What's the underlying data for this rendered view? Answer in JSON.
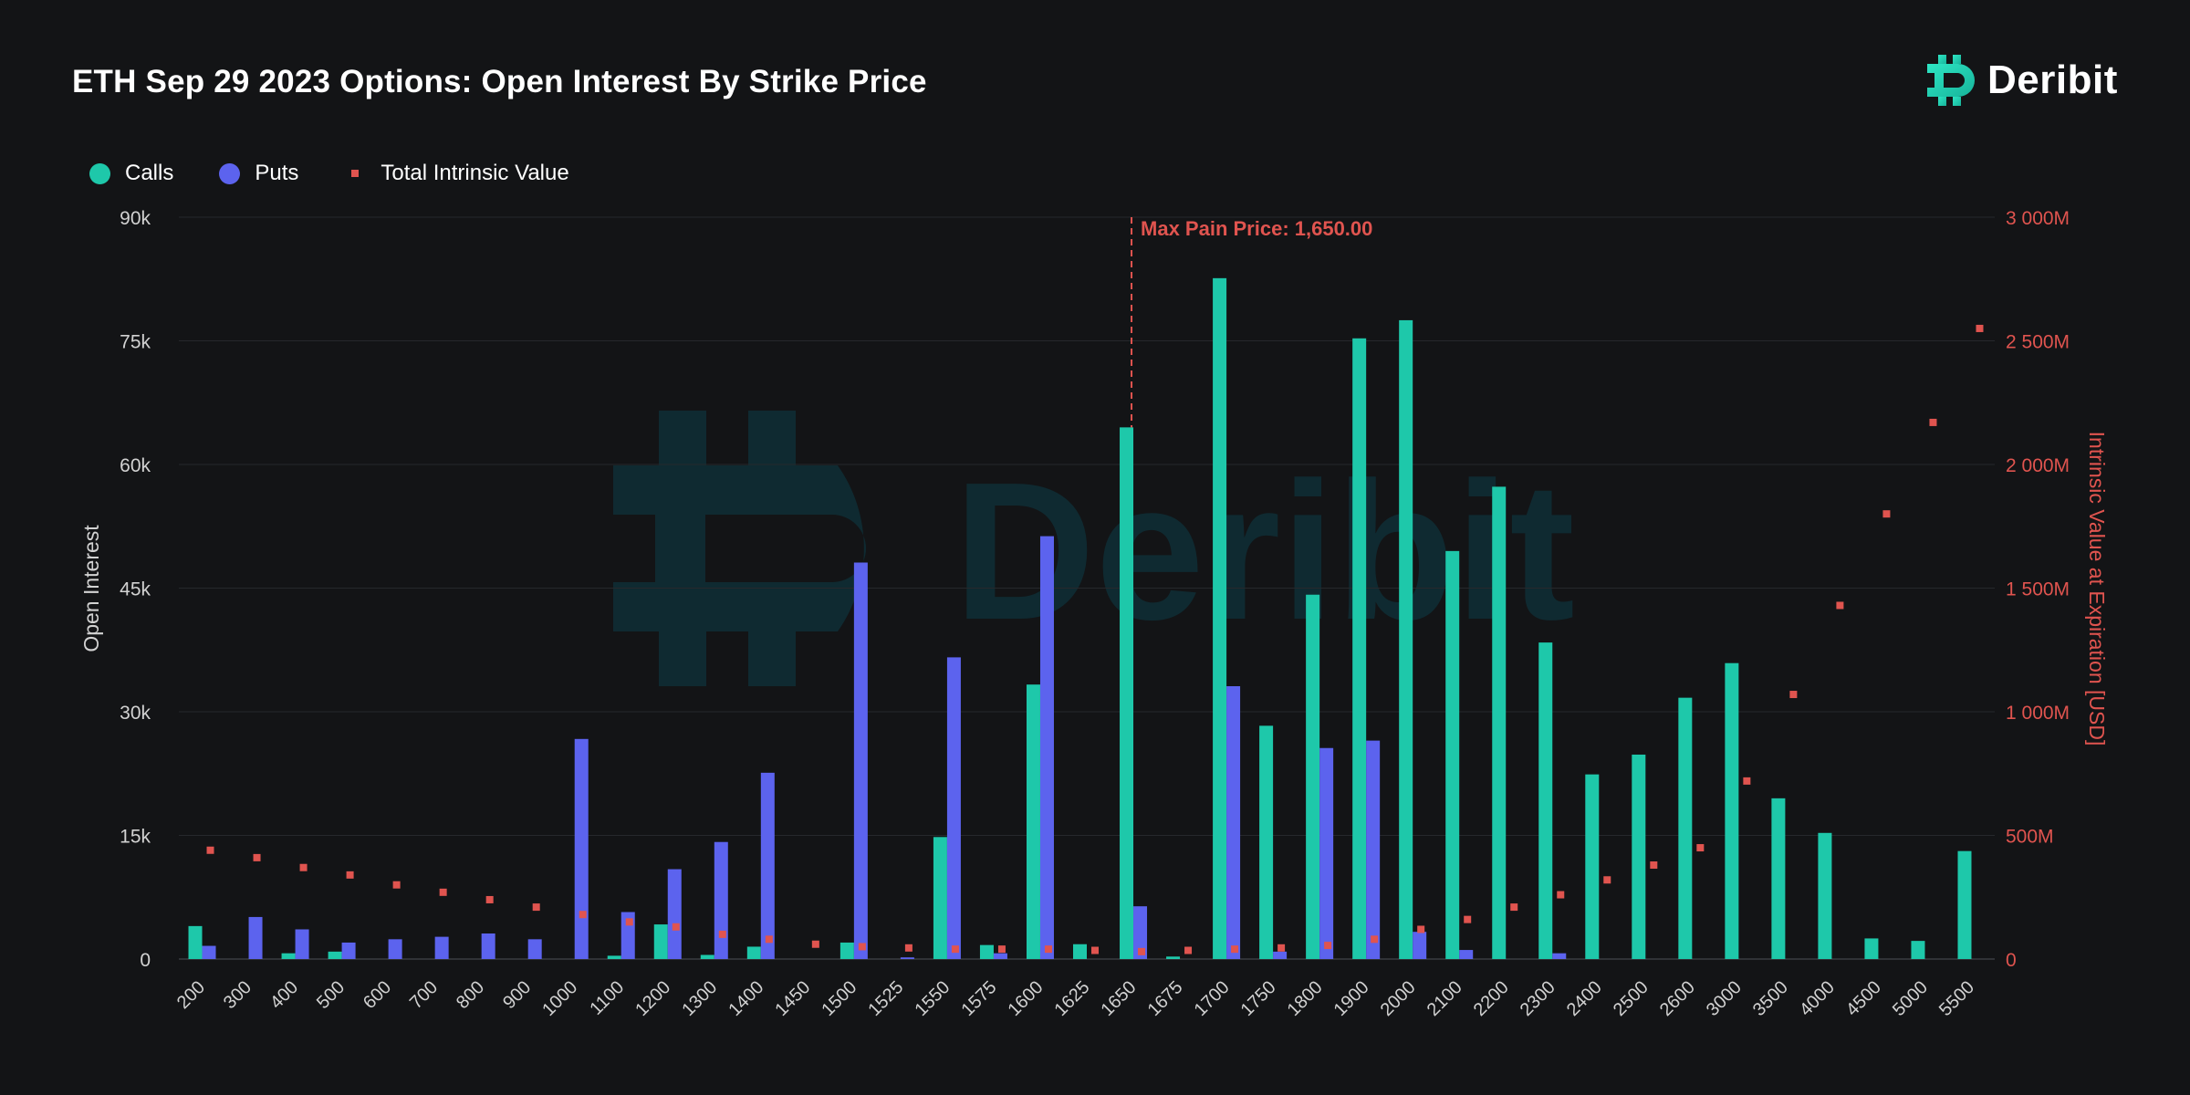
{
  "header": {
    "title": "ETH Sep 29 2023 Options: Open Interest By Strike Price",
    "brand": "Deribit"
  },
  "colors": {
    "background": "#131416",
    "calls": "#1ec8aa",
    "puts": "#5c63ee",
    "intrinsic": "#e0544f",
    "grid": "#26282c",
    "axis_text": "#d2d2d2",
    "right_axis_text": "#e0544f",
    "watermark": "#0f2a31"
  },
  "legend": {
    "calls": "Calls",
    "puts": "Puts",
    "intrinsic": "Total Intrinsic Value"
  },
  "chart_data": {
    "type": "bar",
    "title": "ETH Sep 29 2023 Options: Open Interest By Strike Price",
    "xlabel": "",
    "ylabel": "Open Interest",
    "y2label": "Intrinsic Value at Expiration [USD]",
    "ylim": [
      0,
      90000
    ],
    "y2lim": [
      0,
      3000000000
    ],
    "yticks": [
      "0",
      "15k",
      "30k",
      "45k",
      "60k",
      "75k",
      "90k"
    ],
    "y2ticks": [
      "0",
      "500M",
      "1 000M",
      "1 500M",
      "2 000M",
      "2 500M",
      "3 000M"
    ],
    "grid": true,
    "legend_position": "top-left",
    "categories": [
      "200",
      "300",
      "400",
      "500",
      "600",
      "700",
      "800",
      "900",
      "1000",
      "1100",
      "1200",
      "1300",
      "1400",
      "1450",
      "1500",
      "1525",
      "1550",
      "1575",
      "1600",
      "1625",
      "1650",
      "1675",
      "1700",
      "1750",
      "1800",
      "1900",
      "2000",
      "2100",
      "2200",
      "2300",
      "2400",
      "2500",
      "2600",
      "3000",
      "3500",
      "4000",
      "4500",
      "5000",
      "5500"
    ],
    "series": [
      {
        "name": "Calls",
        "type": "bar",
        "axis": "left",
        "values": [
          4000,
          0,
          700,
          900,
          0,
          0,
          0,
          0,
          0,
          400,
          4200,
          500,
          1500,
          0,
          2000,
          0,
          14800,
          1700,
          33300,
          1800,
          64500,
          300,
          82600,
          28300,
          44200,
          75300,
          77500,
          49500,
          57300,
          38400,
          22400,
          24800,
          31700,
          35900,
          19500,
          15300,
          2500,
          2200,
          13100
        ]
      },
      {
        "name": "Puts",
        "type": "bar",
        "axis": "left",
        "values": [
          1600,
          5100,
          3600,
          2000,
          2400,
          2700,
          3100,
          2400,
          26700,
          5700,
          10900,
          14200,
          22600,
          0,
          48100,
          200,
          36600,
          700,
          51300,
          0,
          6400,
          0,
          33100,
          900,
          25600,
          26500,
          3300,
          1100,
          0,
          700,
          0,
          0,
          0,
          0,
          0,
          0,
          0,
          0,
          0
        ]
      },
      {
        "name": "Total Intrinsic Value",
        "type": "scatter",
        "axis": "right",
        "values": [
          440000000,
          410000000,
          370000000,
          340000000,
          300000000,
          270000000,
          240000000,
          210000000,
          180000000,
          150000000,
          130000000,
          100000000,
          80000000,
          60000000,
          50000000,
          45000000,
          40000000,
          40000000,
          40000000,
          35000000,
          30000000,
          35000000,
          40000000,
          45000000,
          55000000,
          80000000,
          120000000,
          160000000,
          210000000,
          260000000,
          320000000,
          380000000,
          450000000,
          720000000,
          1070000000,
          1430000000,
          1800000000,
          2170000000,
          2550000000
        ]
      }
    ],
    "annotations": [
      {
        "text": "Max Pain Price: 1,650.00",
        "x": "1650"
      }
    ]
  }
}
